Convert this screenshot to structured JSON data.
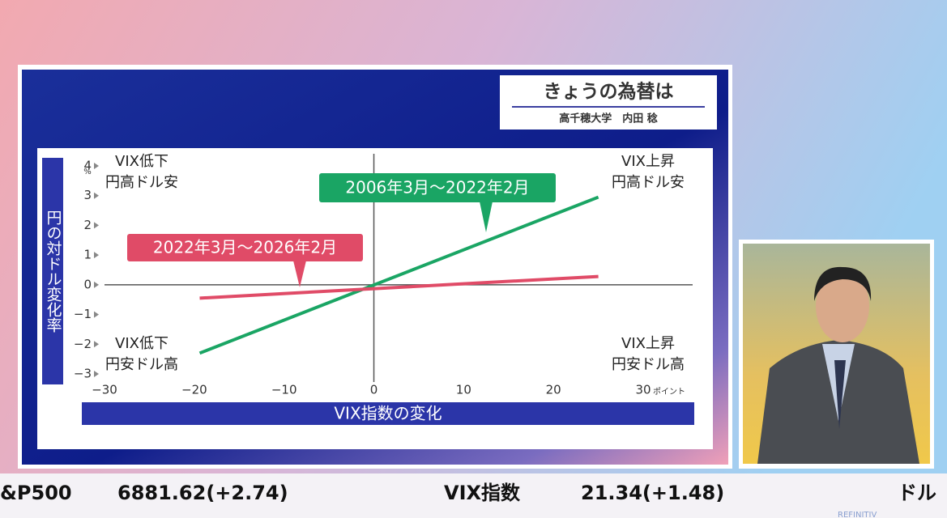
{
  "header": {
    "title": "きょうの為替は",
    "presenter": "高千穂大学　内田 稔"
  },
  "chart_data": {
    "type": "line",
    "y_label": "円の対ドル変化率",
    "y_unit": "%",
    "x_label": "VIX指数の変化",
    "x_unit": "ポイント",
    "x": [
      -19.4,
      25
    ],
    "series": [
      {
        "name": "2006年3月～2022年2月",
        "color": "#1aa564",
        "values": [
          -2.3,
          2.95
        ]
      },
      {
        "name": "2022年3月～2026年2月",
        "color": "#e04b67",
        "values": [
          -0.45,
          0.28
        ]
      }
    ],
    "xlim": [
      -30,
      35.5
    ],
    "xticks": [
      {
        "value": -30,
        "label": "−30"
      },
      {
        "value": -20,
        "label": "−20"
      },
      {
        "value": -10,
        "label": "−10"
      },
      0,
      10,
      20,
      30
    ],
    "ylim": [
      -3,
      4
    ],
    "yticks": [
      {
        "value": -3,
        "label": "−3"
      },
      {
        "value": -2,
        "label": "−2"
      },
      {
        "value": -1,
        "label": "−1"
      },
      0,
      1,
      2,
      3,
      4
    ],
    "annotations": [
      [
        "VIX低下",
        "円高ドル安"
      ],
      [
        "VIX上昇",
        "円高ドル安"
      ],
      [
        "VIX低下",
        "円安ドル高"
      ],
      [
        "VIX上昇",
        "円安ドル高"
      ]
    ]
  },
  "ticker": [
    "&P500",
    "6881.62(+2.74)",
    "VIX指数",
    "21.34(+1.48)",
    "ドル"
  ],
  "provider": "REFINITIV"
}
